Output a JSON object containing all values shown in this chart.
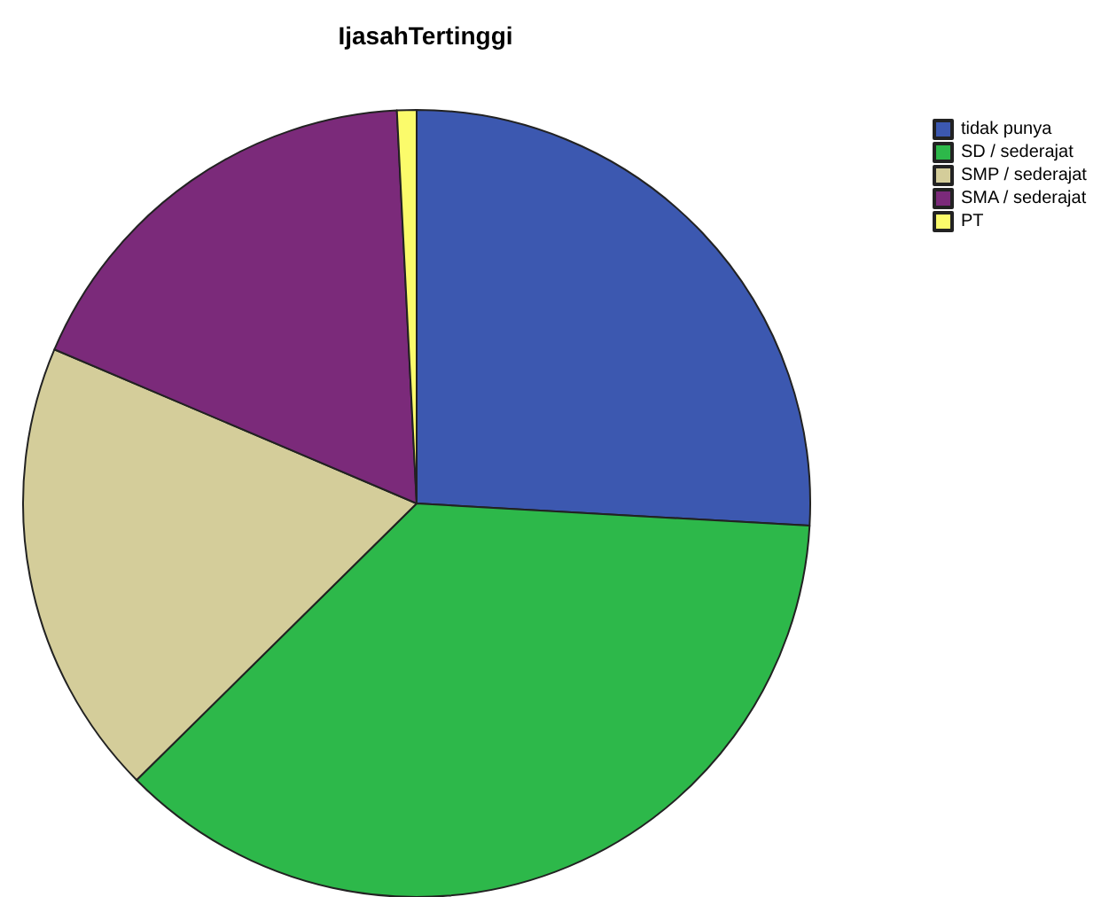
{
  "chart_data": {
    "type": "pie",
    "title": "IjasahTertinggi",
    "categories": [
      "tidak punya",
      "SD / sederajat",
      "SMP / sederajat",
      "SMA / sederajat",
      "PT"
    ],
    "values": [
      25.9,
      36.7,
      18.8,
      17.8,
      0.8
    ],
    "colors": [
      "#3c58b0",
      "#2db84a",
      "#d4cd9a",
      "#7b2a7a",
      "#fbfb6b"
    ],
    "legend": "top right"
  }
}
